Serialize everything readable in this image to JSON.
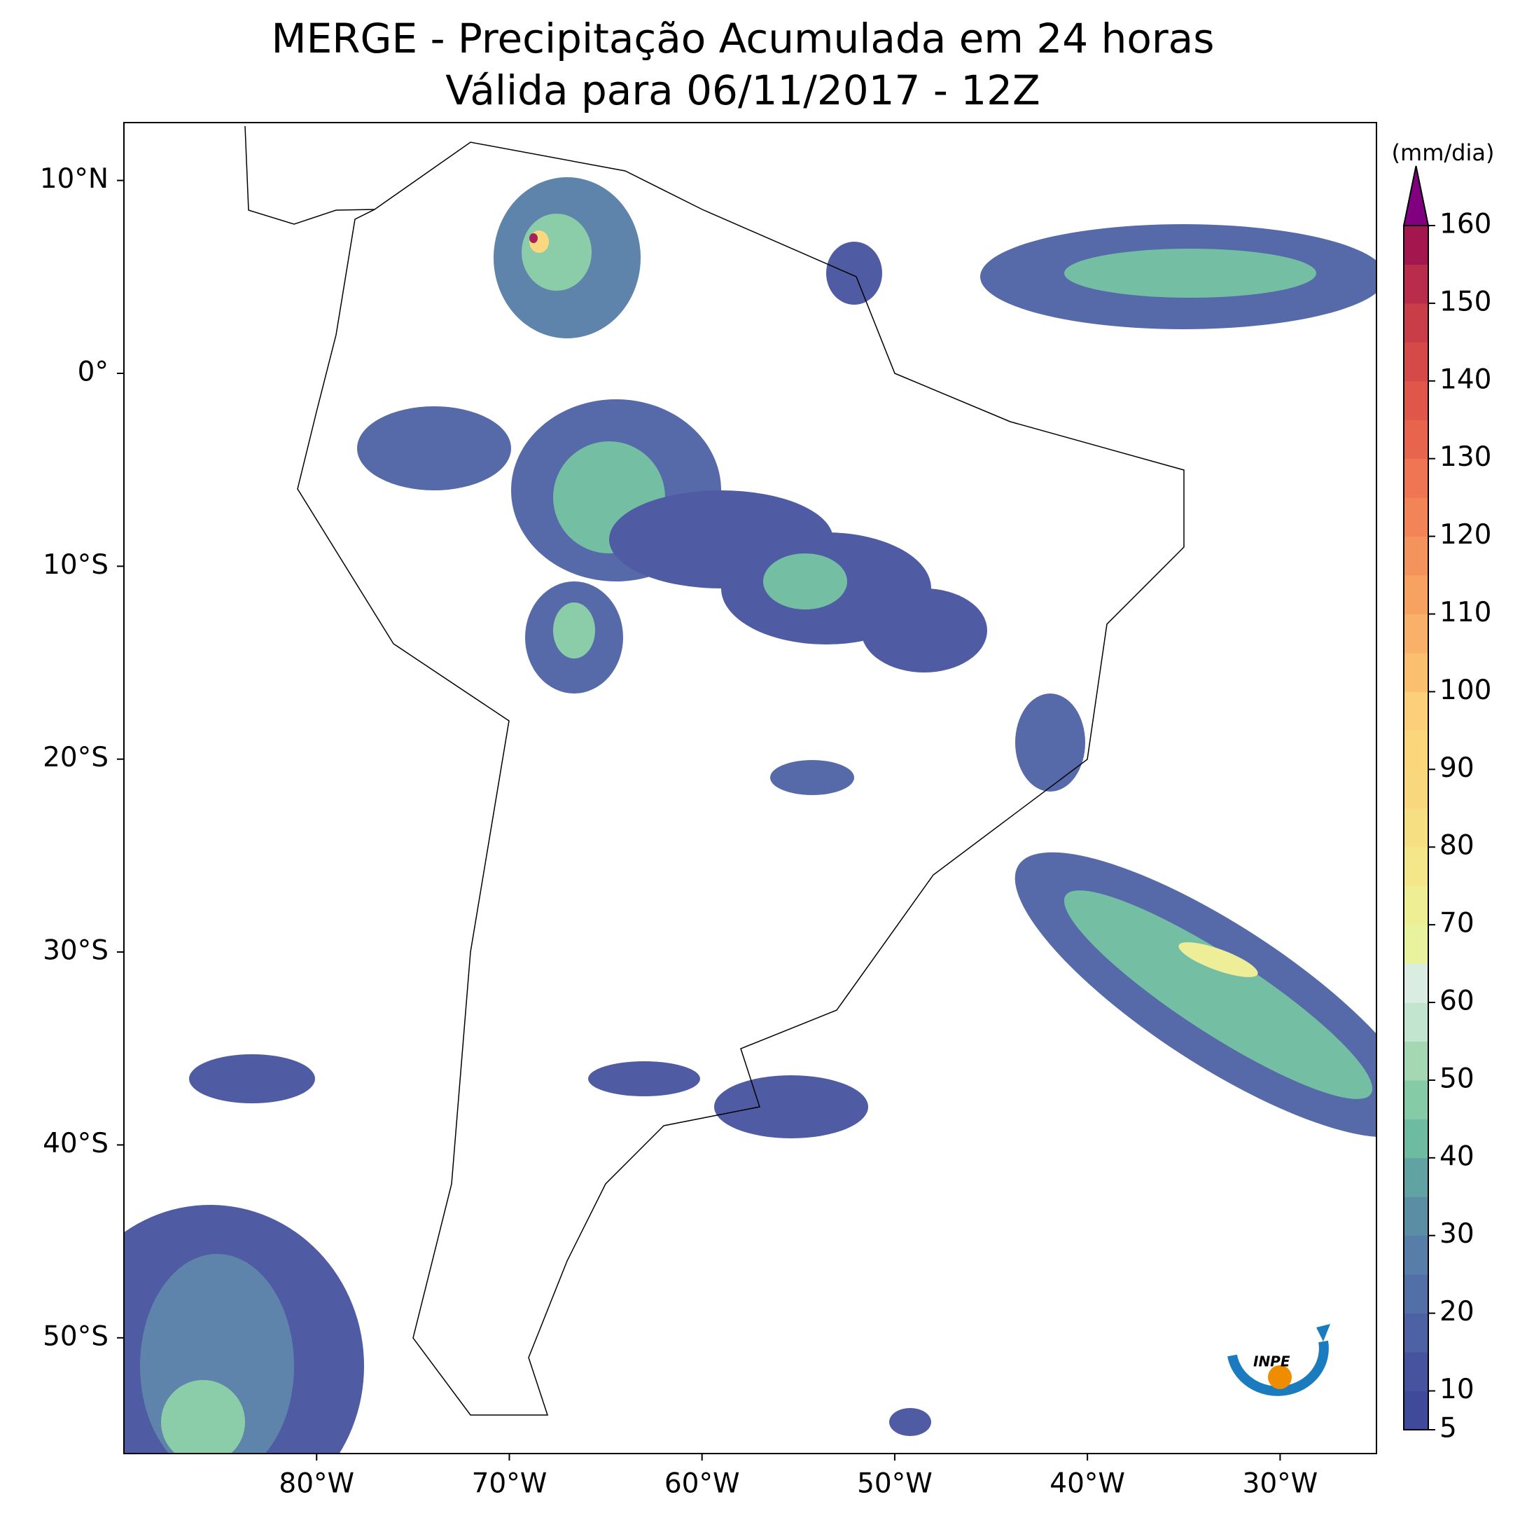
{
  "map": {
    "title": "MERGE - Precipitação Acumulada em 24 horas",
    "subtitle": "Válida para 06/11/2017 - 12Z",
    "xlim": [
      -90,
      -25
    ],
    "ylim": [
      -56,
      13
    ],
    "xticks": [
      {
        "value": -80,
        "label": "80°W"
      },
      {
        "value": -70,
        "label": "70°W"
      },
      {
        "value": -60,
        "label": "60°W"
      },
      {
        "value": -50,
        "label": "50°W"
      },
      {
        "value": -40,
        "label": "40°W"
      },
      {
        "value": -30,
        "label": "30°W"
      }
    ],
    "yticks": [
      {
        "value": 10,
        "label": "10°N"
      },
      {
        "value": 0,
        "label": "0°"
      },
      {
        "value": -10,
        "label": "10°S"
      },
      {
        "value": -20,
        "label": "20°S"
      },
      {
        "value": -30,
        "label": "30°S"
      },
      {
        "value": -40,
        "label": "40°S"
      },
      {
        "value": -50,
        "label": "50°S"
      }
    ],
    "colorbar": {
      "label": "(mm/dia)",
      "lim": [
        5,
        160
      ],
      "ticks": [
        5,
        10,
        20,
        30,
        40,
        50,
        60,
        70,
        80,
        90,
        100,
        110,
        120,
        130,
        140,
        150,
        160
      ],
      "colors": [
        "#3f4a9b",
        "#46539f",
        "#4d61a5",
        "#526fa8",
        "#567ea8",
        "#5a8ea5",
        "#61a3a2",
        "#6dbba0",
        "#85cba5",
        "#a3d8b2",
        "#c2e5cf",
        "#d9ede3",
        "#e9f29c",
        "#eeee94",
        "#f3e78a",
        "#f6de82",
        "#f9d87d",
        "#fbd67a",
        "#fcd07a",
        "#fbbf70",
        "#f9b068",
        "#f8a262",
        "#f5935c",
        "#f38457",
        "#f07552",
        "#e9644d",
        "#e05649",
        "#d54a48",
        "#c93d49",
        "#b92c4c",
        "#a3174e"
      ],
      "extend_color": "#800080"
    },
    "logo": "INPE"
  }
}
